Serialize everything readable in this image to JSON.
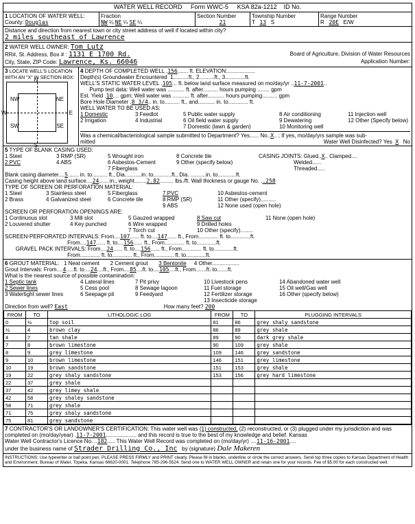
{
  "header": {
    "title": "WATER WELL RECORD",
    "form": "Form WWC-5",
    "ksa": "KSA 82a-1212",
    "id_label": "ID No."
  },
  "section1": {
    "title": "LOCATION OF WATER WELL:",
    "county_label": "County:",
    "county": "Douglas",
    "fraction_label": "Fraction",
    "frac1": "NW",
    "frac1s": "¼",
    "frac2": "NE",
    "frac2s": "¼",
    "frac3": "SE",
    "frac3s": "¼",
    "section_label": "Section Number",
    "section": "21",
    "township_label": "Township Number",
    "township_t": "T",
    "township": "13",
    "township_s": "S",
    "range_label": "Range Number",
    "range_r": "R",
    "range": "20E",
    "range_ew": "E/W",
    "distance_label": "Distance and direction from nearest town or city street address of well if located within city?",
    "distance": "2 miles southeast of Lawrence"
  },
  "section2": {
    "title": "WATER WELL OWNER:",
    "owner": "Tom Lutz",
    "addr_label": "RR#, St. Address, Box #  :",
    "addr": "1131 E 1700 Rd.",
    "city_label": "City, State, ZIP Code:",
    "city": "Lawrence, Ks.  66046",
    "board": "Board of Agriculture, Division of Water Resources",
    "appno": "Application Number:"
  },
  "section3": {
    "title": "LOCATE WELL'S LOCATION WITH AN \"X\" IN SECTION BOX:",
    "nw": "NW",
    "ne": "NE",
    "sw": "SW",
    "se": "SE",
    "n": "N",
    "s": "S",
    "e": "E",
    "w": "W",
    "mile": "1 Mile"
  },
  "section4": {
    "title": "DEPTH OF COMPLETED WELL",
    "depth": "156",
    "depth_unit": "ft. ELEVATION:",
    "gw_label": "Depth(s) Groundwater Encountered",
    "gw1": "1",
    "gw2": "2",
    "gw3": "3",
    "swl_label": "WELL'S STATIC WATER LEVEL",
    "swl": "105",
    "swl_unit": "ft. below land surface measured on mo/day/yr",
    "swl_date": "11-7-2001",
    "pump_label": "Pump test data:  Well water was",
    "pump_after": "ft. after",
    "pump_hours": "hours pumping",
    "pump_gpm": "gpm",
    "est_label": "Est. Yield",
    "est": "10",
    "est_unit": "gpm; Well water was",
    "bore_label": "Bore Hole Diameter",
    "bore": "8 3/4",
    "bore_in": "in. to",
    "bore_ft": "ft., and",
    "bore_in2": "in. to",
    "bore_ft2": "ft.",
    "use_label": "WELL WATER TO BE USED AS:",
    "use1": "1 Domestic",
    "use2": "2 Irrigation",
    "use3": "3 Feedlot",
    "use4": "4 Industrial",
    "use5": "5 Public water supply",
    "use6": "6 Oil field water supply",
    "use7": "7 Domestic (lawn & garden)",
    "use8": "8 Air conditioning",
    "use9": "9 Dewatering",
    "use10": "10 Monitoring well",
    "use11": "11 Injection well",
    "use12": "12 Other (Specify below)",
    "chem_label": "Was a chemical/bacteriological sample submitted to Department?  Yes",
    "chem_no": "No",
    "chem_x": "X",
    "chem_if": "; If yes, mo/day/yrs sample was sub-",
    "chem_mitted": "mitted",
    "disinfect": "Water Well Disinfected?   Yes",
    "disinfect_x": "X",
    "disinfect_no": "No"
  },
  "section5": {
    "title": "TYPE OF BLANK CASING USED:",
    "c1": "1 Steel",
    "c2": "2 PVC",
    "c3": "3 RMP (SR)",
    "c4": "4 ABS",
    "c5": "5 Wrought iron",
    "c6": "6 Asbestos-Cement",
    "c7": "7 Fiberglass",
    "c8": "8 Concrete tile",
    "c9": "9 Other (specify below)",
    "joints_label": "CASING JOINTS: Glued",
    "joints_x": "X",
    "joints_clamped": "Clamped",
    "joints_welded": "Welded",
    "joints_threaded": "Threaded",
    "diam_label": "Blank casing diameter",
    "diam": "5",
    "diam_in": "in. to",
    "diam_ft": "ft., Dia.",
    "height_label": "Casing height above land surface",
    "height": "24",
    "height_in": "in., weight",
    "weight": "2.82",
    "weight_lbs": "lbs./ft. Wall thickness or gauge No.",
    "gauge": ".258",
    "screen_label": "TYPE OF SCREEN OR PERFORATION MATERIAL:",
    "s1": "1 Steel",
    "s2": "2 Brass",
    "s3": "3 Stainless steel",
    "s4": "4 Galvanized steel",
    "s5": "5 Fiberglass",
    "s6": "6 Concrete tile",
    "s7": "7 PVC",
    "s8": "8 RMP (SR)",
    "s9": "9 ABS",
    "s10": "10 Asbestos-cement",
    "s11": "11 Other (specify)",
    "s12": "12 None used (open hole)",
    "open_label": "SCREEN OR PERFORATION OPENINGS ARE:",
    "o1": "1 Continuous slot",
    "o2": "2 Louvered shutter",
    "o3": "3 Mill slot",
    "o4": "4 Key punched",
    "o5": "5 Gauzed wrapped",
    "o6": "6 Wire wrapped",
    "o7": "7 Torch cut",
    "o8": "8 Saw cut",
    "o9": "9 Drilled holes",
    "o10": "10 Other (specify)",
    "o11": "11 None (open hole)",
    "perf_label": "SCREEN-PERFORATED INTERVALS:  From",
    "perf_from1": "107",
    "perf_to1": "147",
    "perf_from2": "147",
    "perf_to2": "156",
    "gravel_label": "GRAVEL PACK INTERVALS:  From",
    "gravel_from1": "24",
    "gravel_to1": "156",
    "ft_to": "ft. to",
    "ft_from": "ft., From",
    "ft_to2": "ft. to",
    "ft": "ft."
  },
  "section6": {
    "title": "GROUT MATERIAL:",
    "g1": "1 Neat cement",
    "g2": "2 Cement grout",
    "g3": "3 Bentonite",
    "g4": "4 Other",
    "grout_label": "Grout Intervals:  From",
    "grout_from1": "4",
    "grout_to1": "24",
    "grout_from2": "85",
    "grout_to2": "105",
    "contam_label": "What is the nearest source of possible contamination:",
    "p1": "1 Septic tank",
    "p2": "2 Sewer lines",
    "p3": "3 Watertight sewer lines",
    "p4": "4 Lateral lines",
    "p5": "5 Cess pool",
    "p6": "6 Seepage pit",
    "p7": "7 Pit privy",
    "p8": "8 Sewage lagoon",
    "p9": "9 Feedyard",
    "p10": "10 Livestock pens",
    "p11": "11 Fuel storage",
    "p12": "12 Fertilizer storage",
    "p13": "13 Insecticide storage",
    "p14": "14 Abandoned water well",
    "p15": "15 Oil well/Gas well",
    "p16": "16 Other (specify below)",
    "dir_label": "Direction from well?",
    "dir": "East",
    "feet_label": "How many feet?",
    "feet": "200"
  },
  "litho": {
    "h_from": "FROM",
    "h_to": "TO",
    "h_log": "LITHOLOGIC LOG",
    "h_plug": "PLUGGING INTERVALS",
    "rows": [
      [
        "0",
        "½",
        "top soil",
        "81",
        "86",
        "grey shaly sandstone"
      ],
      [
        "½",
        "4",
        "brown clay",
        "86",
        "89",
        "grey shale"
      ],
      [
        "4",
        "7",
        "tan shale",
        "89",
        "90",
        "dark grey shale"
      ],
      [
        "7",
        "8",
        "brown limestone",
        "90",
        "109",
        "grey shale"
      ],
      [
        "8",
        "9",
        "grey limestone",
        "109",
        "146",
        "grey sandstone"
      ],
      [
        "9",
        "10",
        "brown limestone",
        "146",
        "151",
        "grey limestone"
      ],
      [
        "10",
        "19",
        "brown sandstone",
        "151",
        "153",
        "grey shale"
      ],
      [
        "19",
        "22",
        "grey shaly sandstone",
        "153",
        "156",
        "grey hard limestone"
      ],
      [
        "22",
        "37",
        "grey shale",
        "",
        "",
        ""
      ],
      [
        "37",
        "42",
        "grey limey shale",
        "",
        "",
        ""
      ],
      [
        "42",
        "58",
        "grey shaley sandstone",
        "",
        "",
        ""
      ],
      [
        "58",
        "71",
        "grey shale",
        "",
        "",
        ""
      ],
      [
        "71",
        "75",
        "grey shaly sandstone",
        "",
        "",
        ""
      ],
      [
        "75",
        "81",
        "grey sandstone",
        "",
        "",
        ""
      ]
    ]
  },
  "section7": {
    "title": "CONTRACTOR'S OR LANDOWNER'S CERTIFICATION: This water well was",
    "opt1": "(1) constructed,",
    "opt2": "(2) reconstructed, or",
    "opt3": "(3) plugged under my jurisdiction and was",
    "completed_label": "completed on (mo/day/year)",
    "completed": "11-7-2001",
    "belief": "and this record is true to the best of my knowledge and belief. Kansas",
    "lic_label": "Water Well Contractor's Licence No.",
    "lic": "182",
    "record_label": "This Water Well Record was completed on (mo/day/yr)",
    "record_date": "11-16-2001",
    "business_label": "under the business name of",
    "business": "Strader Drilling Co., Inc",
    "by": "by (signature)",
    "signature": "Dale Makeren"
  },
  "instructions": "INSTRUCTIONS: Use typewriter or ball point pen. PLEASE PRESS FIRMLY and PRINT clearly. Please fill in blanks, underline or circle the correct answers. Send top three copies to Kansas Department of Health and Environment, Bureau of Water, Topeka, Kansas 66620-0001. Telephone 785-296-5524. Send one to WATER WELL OWNER and retain one for your records. Fee of $5.00 for each constructed well."
}
